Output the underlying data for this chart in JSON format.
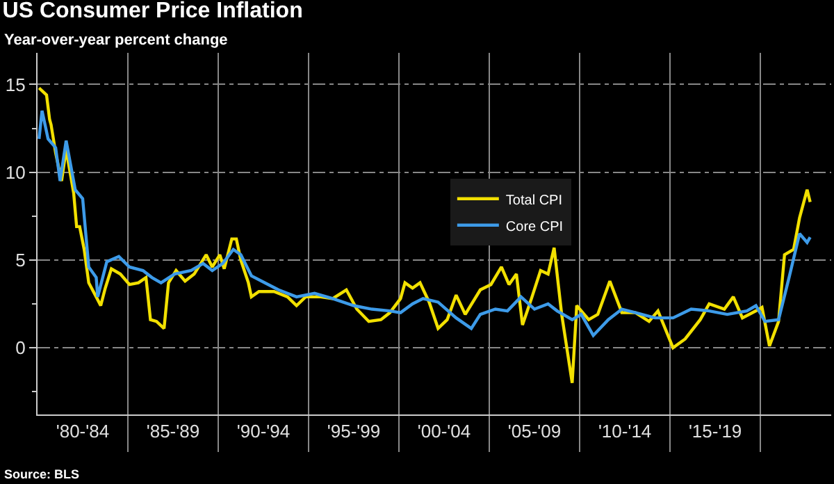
{
  "chart_data": {
    "type": "line",
    "title": "US Consumer Price Inflation",
    "subtitle": "Year-over-year percent change",
    "annotations": [
      "Source: BLS"
    ],
    "xlim": [
      "1980-01",
      "2023-12"
    ],
    "ylim": [
      -3.8,
      16.8
    ],
    "xticks": [
      {
        "value": "1982-07",
        "label": "'80-'84"
      },
      {
        "value": "1985-01",
        "label": null
      },
      {
        "value": "1987-07",
        "label": "'85-'89"
      },
      {
        "value": "1990-01",
        "label": null
      },
      {
        "value": "1992-07",
        "label": "'90-'94"
      },
      {
        "value": "1995-01",
        "label": null
      },
      {
        "value": "1997-07",
        "label": "'95-'99"
      },
      {
        "value": "2000-01",
        "label": null
      },
      {
        "value": "2002-07",
        "label": "'00-'04"
      },
      {
        "value": "2005-01",
        "label": null
      },
      {
        "value": "2007-07",
        "label": "'05-'09"
      },
      {
        "value": "2010-01",
        "label": null
      },
      {
        "value": "2012-07",
        "label": "'10-'14"
      },
      {
        "value": "2015-01",
        "label": null
      },
      {
        "value": "2017-07",
        "label": "'15-'19"
      },
      {
        "value": "2020-01",
        "label": null
      }
    ],
    "yticks": [
      {
        "value": -2.5,
        "label": null
      },
      0,
      {
        "value": 2.5,
        "label": null
      },
      5,
      {
        "value": 7.5,
        "label": null
      },
      10,
      {
        "value": 12.5,
        "label": null
      },
      15
    ],
    "grid": true,
    "legend": "center",
    "line_style": "solid",
    "marker": "none",
    "series": [
      {
        "name": "Total CPI",
        "color": "#f2e000",
        "x": [
          "1980-02",
          "1980-07",
          "1980-09",
          "1980-10",
          "1981-01",
          "1981-03",
          "1981-05",
          "1981-08",
          "1981-10",
          "1982-01",
          "1982-03",
          "1982-05",
          "1982-08",
          "1982-11",
          "1983-04",
          "1983-07",
          "1983-10",
          "1984-02",
          "1984-08",
          "1985-02",
          "1985-08",
          "1986-01",
          "1986-04",
          "1986-08",
          "1987-01",
          "1987-04",
          "1987-09",
          "1988-03",
          "1988-09",
          "1989-05",
          "1989-09",
          "1990-02",
          "1990-05",
          "1990-10",
          "1991-01",
          "1991-04",
          "1991-09",
          "1991-11",
          "1992-04",
          "1993-02",
          "1993-11",
          "1994-05",
          "1994-11",
          "1995-09",
          "1996-05",
          "1997-02",
          "1997-09",
          "1998-05",
          "1999-01",
          "1999-07",
          "2000-02",
          "2000-05",
          "2000-10",
          "2001-03",
          "2001-09",
          "2002-03",
          "2002-09",
          "2003-03",
          "2003-09",
          "2004-07",
          "2005-02",
          "2005-09",
          "2006-02",
          "2006-07",
          "2006-11",
          "2007-05",
          "2007-11",
          "2008-04",
          "2008-08",
          "2009-01",
          "2009-08",
          "2009-11",
          "2010-07",
          "2011-01",
          "2011-09",
          "2012-05",
          "2013-02",
          "2013-11",
          "2014-05",
          "2015-03",
          "2015-11",
          "2016-09",
          "2017-03",
          "2018-01",
          "2018-07",
          "2019-01",
          "2019-10",
          "2020-02",
          "2020-07",
          "2021-01",
          "2021-05",
          "2021-11",
          "2022-03",
          "2022-08",
          "2022-10"
        ],
        "values": [
          14.8,
          14.4,
          13.0,
          12.7,
          11.1,
          10.3,
          9.5,
          11.3,
          10.3,
          8.8,
          6.9,
          6.9,
          5.6,
          3.7,
          2.9,
          2.4,
          3.4,
          4.5,
          4.2,
          3.6,
          3.7,
          4.0,
          1.6,
          1.5,
          1.1,
          3.7,
          4.4,
          3.8,
          4.2,
          5.3,
          4.6,
          5.3,
          4.5,
          6.2,
          6.2,
          5.0,
          3.7,
          2.9,
          3.2,
          3.2,
          2.9,
          2.4,
          2.9,
          2.9,
          2.8,
          3.3,
          2.2,
          1.5,
          1.6,
          2.0,
          2.8,
          3.7,
          3.4,
          3.7,
          2.6,
          1.1,
          1.6,
          3.0,
          1.9,
          3.3,
          3.6,
          4.6,
          3.6,
          4.2,
          1.3,
          2.8,
          4.4,
          4.2,
          5.7,
          1.9,
          -2.0,
          2.4,
          1.6,
          1.9,
          3.8,
          2.0,
          2.0,
          1.5,
          2.1,
          0.0,
          0.5,
          1.6,
          2.5,
          2.2,
          2.9,
          1.7,
          2.1,
          2.3,
          0.1,
          1.5,
          5.3,
          5.6,
          7.4,
          9.0,
          8.3
        ]
      },
      {
        "name": "Core CPI",
        "color": "#3d9be9",
        "x": [
          "1980-02",
          "1980-04",
          "1980-08",
          "1981-01",
          "1981-04",
          "1981-08",
          "1982-02",
          "1982-07",
          "1982-11",
          "1983-04",
          "1983-05",
          "1983-11",
          "1984-07",
          "1985-02",
          "1985-11",
          "1986-05",
          "1986-11",
          "1987-08",
          "1988-07",
          "1989-03",
          "1989-09",
          "1990-04",
          "1990-11",
          "1991-04",
          "1991-11",
          "1992-08",
          "1993-05",
          "1994-05",
          "1995-05",
          "1996-05",
          "1997-07",
          "1998-07",
          "1999-07",
          "2000-02",
          "2000-10",
          "2001-05",
          "2002-03",
          "2003-03",
          "2004-01",
          "2004-07",
          "2005-05",
          "2006-01",
          "2006-10",
          "2007-07",
          "2008-04",
          "2008-10",
          "2009-08",
          "2010-02",
          "2010-10",
          "2011-08",
          "2012-05",
          "2013-02",
          "2014-03",
          "2015-03",
          "2016-03",
          "2017-03",
          "2018-03",
          "2019-04",
          "2019-10",
          "2020-04",
          "2021-01",
          "2021-08",
          "2022-03",
          "2022-08",
          "2022-10"
        ],
        "values": [
          11.9,
          13.5,
          11.9,
          11.4,
          9.5,
          11.8,
          9.0,
          8.5,
          4.6,
          4.0,
          2.9,
          4.9,
          5.2,
          4.6,
          4.4,
          4.0,
          3.7,
          4.2,
          4.4,
          4.8,
          4.4,
          4.8,
          5.6,
          5.3,
          4.1,
          3.7,
          3.3,
          2.9,
          3.1,
          2.8,
          2.4,
          2.2,
          2.1,
          2.0,
          2.5,
          2.8,
          2.6,
          1.7,
          1.1,
          1.9,
          2.2,
          2.1,
          2.9,
          2.2,
          2.5,
          2.1,
          1.6,
          1.9,
          0.7,
          1.6,
          2.2,
          2.0,
          1.7,
          1.7,
          2.2,
          2.1,
          1.9,
          2.1,
          2.4,
          1.5,
          1.6,
          4.0,
          6.5,
          6.0,
          6.3
        ]
      }
    ]
  }
}
